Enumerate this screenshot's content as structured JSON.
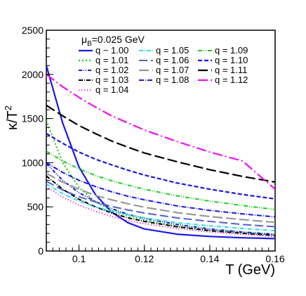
{
  "chart_data": {
    "type": "line",
    "xlabel": "T (GeV)",
    "ylabel_base": "κ/T",
    "ylabel_sup": "2",
    "xlim": [
      0.09,
      0.16
    ],
    "ylim": [
      0,
      2500
    ],
    "xticks": [
      0.1,
      0.12,
      0.14,
      0.16
    ],
    "yticks": [
      0,
      500,
      1000,
      1500,
      2000,
      2500
    ],
    "grid": false,
    "legend_placement": "top-right",
    "annotation": {
      "prefix": "μ",
      "sub": "B",
      "suffix": "=0.025 GeV"
    },
    "series": [
      {
        "name": "q ~ 1.00",
        "color": "#1a1adf",
        "dash": "",
        "width": 2.2,
        "x": [
          0.09,
          0.095,
          0.1,
          0.105,
          0.11,
          0.115,
          0.12,
          0.13,
          0.14,
          0.15,
          0.16
        ],
        "y": [
          2100,
          1450,
          950,
          640,
          440,
          320,
          250,
          190,
          165,
          150,
          140
        ]
      },
      {
        "name": "q = 1.01",
        "color": "#22cc22",
        "dash": "2,3",
        "width": 2.2,
        "x": [
          0.09,
          0.095,
          0.1,
          0.105,
          0.11,
          0.115,
          0.12,
          0.13,
          0.14,
          0.15,
          0.16
        ],
        "y": [
          1480,
          1000,
          720,
          560,
          460,
          400,
          350,
          280,
          240,
          210,
          185
        ]
      },
      {
        "name": "q = 1.02",
        "color": "#1a1adf",
        "dash": "5,2,1,2,1,2",
        "width": 2,
        "x": [
          0.09,
          0.095,
          0.1,
          0.105,
          0.11,
          0.115,
          0.12,
          0.13,
          0.14,
          0.15,
          0.16
        ],
        "y": [
          990,
          800,
          660,
          560,
          480,
          415,
          370,
          300,
          250,
          215,
          190
        ]
      },
      {
        "name": "q = 1.03",
        "color": "#000000",
        "dash": "6,2,1,2",
        "width": 2,
        "x": [
          0.09,
          0.095,
          0.1,
          0.105,
          0.11,
          0.115,
          0.12,
          0.13,
          0.14,
          0.15,
          0.16
        ],
        "y": [
          850,
          700,
          585,
          500,
          430,
          375,
          335,
          275,
          230,
          200,
          175
        ]
      },
      {
        "name": "q = 1.04",
        "color": "#dd11dd",
        "dash": "1,3",
        "width": 2.2,
        "x": [
          0.09,
          0.095,
          0.1,
          0.105,
          0.11,
          0.115,
          0.12,
          0.13,
          0.14,
          0.15,
          0.16
        ],
        "y": [
          730,
          610,
          520,
          450,
          390,
          345,
          310,
          255,
          215,
          190,
          165
        ]
      },
      {
        "name": "q = 1.05",
        "color": "#33dddd",
        "dash": "6,2,1,2",
        "width": 2,
        "x": [
          0.09,
          0.095,
          0.1,
          0.105,
          0.11,
          0.115,
          0.12,
          0.13,
          0.14,
          0.15,
          0.16
        ],
        "y": [
          760,
          650,
          565,
          500,
          450,
          410,
          375,
          320,
          285,
          255,
          230
        ]
      },
      {
        "name": "q = 1.06",
        "color": "#5560cc",
        "dash": "12,5",
        "width": 2,
        "x": [
          0.09,
          0.095,
          0.1,
          0.105,
          0.11,
          0.115,
          0.12,
          0.13,
          0.14,
          0.15,
          0.16
        ],
        "y": [
          790,
          690,
          615,
          555,
          505,
          465,
          430,
          375,
          335,
          300,
          275
        ]
      },
      {
        "name": "q = 1.07",
        "color": "#999999",
        "dash": "14,5",
        "width": 2.2,
        "x": [
          0.09,
          0.095,
          0.1,
          0.105,
          0.11,
          0.115,
          0.12,
          0.13,
          0.14,
          0.15,
          0.16
        ],
        "y": [
          880,
          780,
          700,
          630,
          580,
          535,
          495,
          435,
          390,
          355,
          325
        ]
      },
      {
        "name": "q = 1.08",
        "color": "#1a1adf",
        "dash": "7,2,1,2",
        "width": 2,
        "x": [
          0.09,
          0.095,
          0.1,
          0.105,
          0.11,
          0.115,
          0.12,
          0.13,
          0.14,
          0.15,
          0.16
        ],
        "y": [
          1000,
          890,
          800,
          730,
          670,
          620,
          580,
          510,
          460,
          420,
          385
        ]
      },
      {
        "name": "q = 1.09",
        "color": "#22cc22",
        "dash": "6,2,1,2,1,2",
        "width": 2,
        "x": [
          0.09,
          0.095,
          0.1,
          0.105,
          0.11,
          0.115,
          0.12,
          0.13,
          0.14,
          0.15,
          0.16
        ],
        "y": [
          1130,
          1020,
          930,
          855,
          795,
          745,
          700,
          625,
          565,
          515,
          470
        ]
      },
      {
        "name": "q = 1.10",
        "color": "#1a1adf",
        "dash": "6,3",
        "width": 2.2,
        "x": [
          0.09,
          0.095,
          0.1,
          0.105,
          0.11,
          0.115,
          0.12,
          0.13,
          0.14,
          0.15,
          0.16
        ],
        "y": [
          1330,
          1220,
          1120,
          1040,
          975,
          915,
          860,
          770,
          700,
          640,
          590
        ]
      },
      {
        "name": "q = 1.11",
        "color": "#000000",
        "dash": "14,5",
        "width": 2.2,
        "x": [
          0.09,
          0.095,
          0.1,
          0.105,
          0.11,
          0.115,
          0.12,
          0.13,
          0.14,
          0.15,
          0.16
        ],
        "y": [
          1650,
          1530,
          1420,
          1330,
          1245,
          1175,
          1110,
          1010,
          920,
          845,
          780
        ]
      },
      {
        "name": "q = 1.12",
        "color": "#ee11ee",
        "dash": "14,4,2,4",
        "width": 2.2,
        "x": [
          0.09,
          0.095,
          0.1,
          0.105,
          0.11,
          0.115,
          0.12,
          0.13,
          0.14,
          0.15,
          0.16
        ],
        "y": [
          2000,
          1860,
          1740,
          1630,
          1530,
          1450,
          1370,
          1240,
          1120,
          1020,
          700
        ]
      }
    ]
  }
}
